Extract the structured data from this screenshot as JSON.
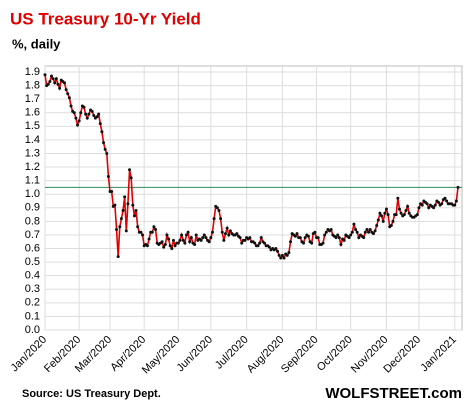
{
  "chart_data": {
    "type": "line",
    "title": "US Treasury  10-Yr Yield",
    "subtitle": "%, daily",
    "source": "Source: US Treasury Dept.",
    "brand": "WOLFSTREET.com",
    "categories": [
      "Jan/2020",
      null,
      null,
      null,
      null,
      null,
      null,
      null,
      null,
      null,
      null,
      null,
      null,
      null,
      null,
      null,
      null,
      null,
      null,
      null,
      null,
      "Feb/2020",
      null,
      null,
      null,
      null,
      null,
      null,
      null,
      null,
      null,
      null,
      null,
      null,
      null,
      null,
      null,
      null,
      null,
      null,
      "Mar/2020",
      null,
      null,
      null,
      null,
      null,
      null,
      null,
      null,
      null,
      null,
      null,
      null,
      null,
      null,
      null,
      null,
      null,
      null,
      null,
      null,
      "Apr/2020",
      null,
      null,
      null,
      null,
      null,
      null,
      null,
      null,
      null,
      null,
      null,
      null,
      null,
      null,
      null,
      null,
      null,
      null,
      null,
      null,
      "May/2020",
      null,
      null,
      null,
      null,
      null,
      null,
      null,
      null,
      null,
      null,
      null,
      null,
      null,
      null,
      null,
      null,
      null,
      null,
      null,
      "Jun/2020",
      null,
      null,
      null,
      null,
      null,
      null,
      null,
      null,
      null,
      null,
      null,
      null,
      null,
      null,
      null,
      null,
      null,
      null,
      null,
      null,
      null,
      "Jul/2020",
      null,
      null,
      null,
      null,
      null,
      null,
      null,
      null,
      null,
      null,
      null,
      null,
      null,
      null,
      null,
      null,
      null,
      null,
      null,
      null,
      null,
      "Aug/2020",
      null,
      null,
      null,
      null,
      null,
      null,
      null,
      null,
      null,
      null,
      null,
      null,
      null,
      null,
      null,
      null,
      null,
      null,
      null,
      null,
      "Sep/2020",
      null,
      null,
      null,
      null,
      null,
      null,
      null,
      null,
      null,
      null,
      null,
      null,
      null,
      null,
      null,
      null,
      null,
      null,
      null,
      null,
      "Oct/2020",
      null,
      null,
      null,
      null,
      null,
      null,
      null,
      null,
      null,
      null,
      null,
      null,
      null,
      null,
      null,
      null,
      null,
      null,
      null,
      null,
      null,
      "Nov/2020",
      null,
      null,
      null,
      null,
      null,
      null,
      null,
      null,
      null,
      null,
      null,
      null,
      null,
      null,
      null,
      null,
      null,
      null,
      null,
      "Dec/2020",
      null,
      null,
      null,
      null,
      null,
      null,
      null,
      null,
      null,
      null,
      null,
      null,
      null,
      null,
      null,
      null,
      null,
      null,
      null,
      null,
      null,
      "Jan/2021",
      null,
      null
    ],
    "values": [
      1.88,
      1.8,
      1.81,
      1.83,
      1.87,
      1.85,
      1.82,
      1.85,
      1.81,
      1.78,
      1.84,
      1.83,
      1.82,
      1.77,
      1.74,
      1.71,
      1.65,
      1.61,
      1.6,
      1.56,
      1.51,
      1.54,
      1.6,
      1.65,
      1.64,
      1.59,
      1.56,
      1.59,
      1.62,
      1.61,
      1.58,
      1.56,
      1.57,
      1.59,
      1.52,
      1.46,
      1.38,
      1.33,
      1.3,
      1.13,
      1.02,
      1.02,
      0.91,
      0.92,
      0.74,
      0.54,
      0.76,
      0.82,
      0.88,
      0.98,
      0.73,
      0.93,
      1.18,
      1.12,
      0.92,
      0.84,
      0.88,
      0.76,
      0.72,
      0.72,
      0.7,
      0.62,
      0.63,
      0.62,
      0.67,
      0.72,
      0.72,
      0.76,
      0.74,
      0.64,
      0.63,
      0.64,
      0.65,
      0.61,
      0.63,
      0.7,
      0.67,
      0.62,
      0.6,
      0.66,
      0.62,
      0.64,
      0.64,
      0.66,
      0.7,
      0.66,
      0.64,
      0.7,
      0.72,
      0.65,
      0.68,
      0.64,
      0.63,
      0.7,
      0.66,
      0.67,
      0.66,
      0.68,
      0.7,
      0.68,
      0.66,
      0.65,
      0.68,
      0.72,
      0.82,
      0.91,
      0.9,
      0.88,
      0.82,
      0.72,
      0.66,
      0.71,
      0.75,
      0.7,
      0.73,
      0.71,
      0.7,
      0.7,
      0.71,
      0.69,
      0.68,
      0.64,
      0.66,
      0.66,
      0.68,
      0.67,
      0.68,
      0.65,
      0.65,
      0.64,
      0.62,
      0.62,
      0.64,
      0.68,
      0.65,
      0.64,
      0.62,
      0.62,
      0.61,
      0.59,
      0.6,
      0.59,
      0.6,
      0.58,
      0.55,
      0.53,
      0.55,
      0.53,
      0.56,
      0.55,
      0.57,
      0.65,
      0.71,
      0.7,
      0.69,
      0.71,
      0.68,
      0.68,
      0.65,
      0.64,
      0.68,
      0.7,
      0.69,
      0.65,
      0.64,
      0.71,
      0.72,
      0.68,
      0.68,
      0.63,
      0.63,
      0.64,
      0.7,
      0.72,
      0.74,
      0.73,
      0.74,
      0.7,
      0.69,
      0.68,
      0.7,
      0.68,
      0.63,
      0.67,
      0.66,
      0.7,
      0.69,
      0.68,
      0.7,
      0.72,
      0.78,
      0.74,
      0.72,
      0.68,
      0.7,
      0.69,
      0.68,
      0.72,
      0.74,
      0.72,
      0.74,
      0.72,
      0.71,
      0.73,
      0.77,
      0.81,
      0.86,
      0.84,
      0.8,
      0.86,
      0.89,
      0.85,
      0.76,
      0.77,
      0.8,
      0.85,
      0.85,
      0.97,
      0.89,
      0.86,
      0.84,
      0.85,
      0.88,
      0.91,
      0.86,
      0.84,
      0.83,
      0.83,
      0.84,
      0.85,
      0.9,
      0.93,
      0.92,
      0.95,
      0.94,
      0.93,
      0.9,
      0.92,
      0.91,
      0.9,
      0.92,
      0.95,
      0.94,
      0.92,
      0.93,
      0.96,
      0.97,
      0.95,
      0.93,
      0.93,
      0.93,
      0.92,
      0.92,
      0.95,
      1.05
    ],
    "color": "#e00000",
    "marker_color": "#111111",
    "reference_line": 1.05,
    "reference_color": "#2e8b57",
    "ylim": [
      0,
      1.9
    ],
    "yticks": [
      {
        "value": 0,
        "label": "0.0"
      },
      0.1,
      0.2,
      0.3,
      0.4,
      0.5,
      0.6,
      0.7,
      0.8,
      0.9,
      {
        "value": 1,
        "label": "1.0"
      },
      1.1,
      1.2,
      1.3,
      1.4,
      1.5,
      1.6,
      1.7,
      1.8,
      1.9
    ],
    "grid": true
  }
}
